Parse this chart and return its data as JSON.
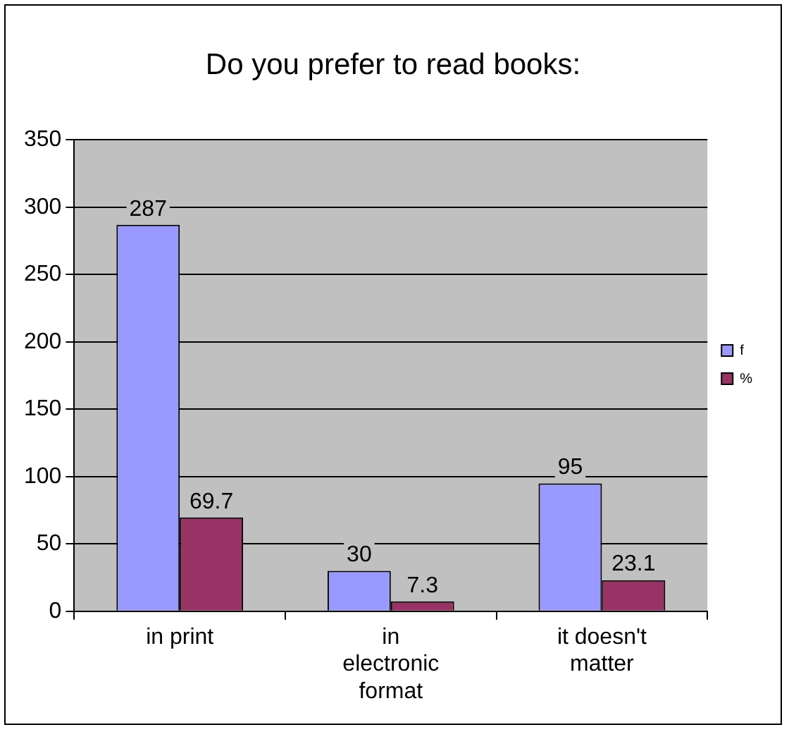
{
  "chart_data": {
    "type": "bar",
    "title": "Do you prefer to read books:",
    "categories": [
      "in print",
      "in electronic format",
      "it doesn't matter"
    ],
    "series": [
      {
        "name": "f",
        "color": "#9999ff",
        "values": [
          287,
          30,
          95
        ]
      },
      {
        "name": "%",
        "color": "#993366",
        "values": [
          69.7,
          7.3,
          23.1
        ]
      }
    ],
    "ylim": [
      0,
      350
    ],
    "yticks": [
      0,
      50,
      100,
      150,
      200,
      250,
      300,
      350
    ],
    "grid": "y",
    "legend": "right",
    "data_labels": true
  }
}
